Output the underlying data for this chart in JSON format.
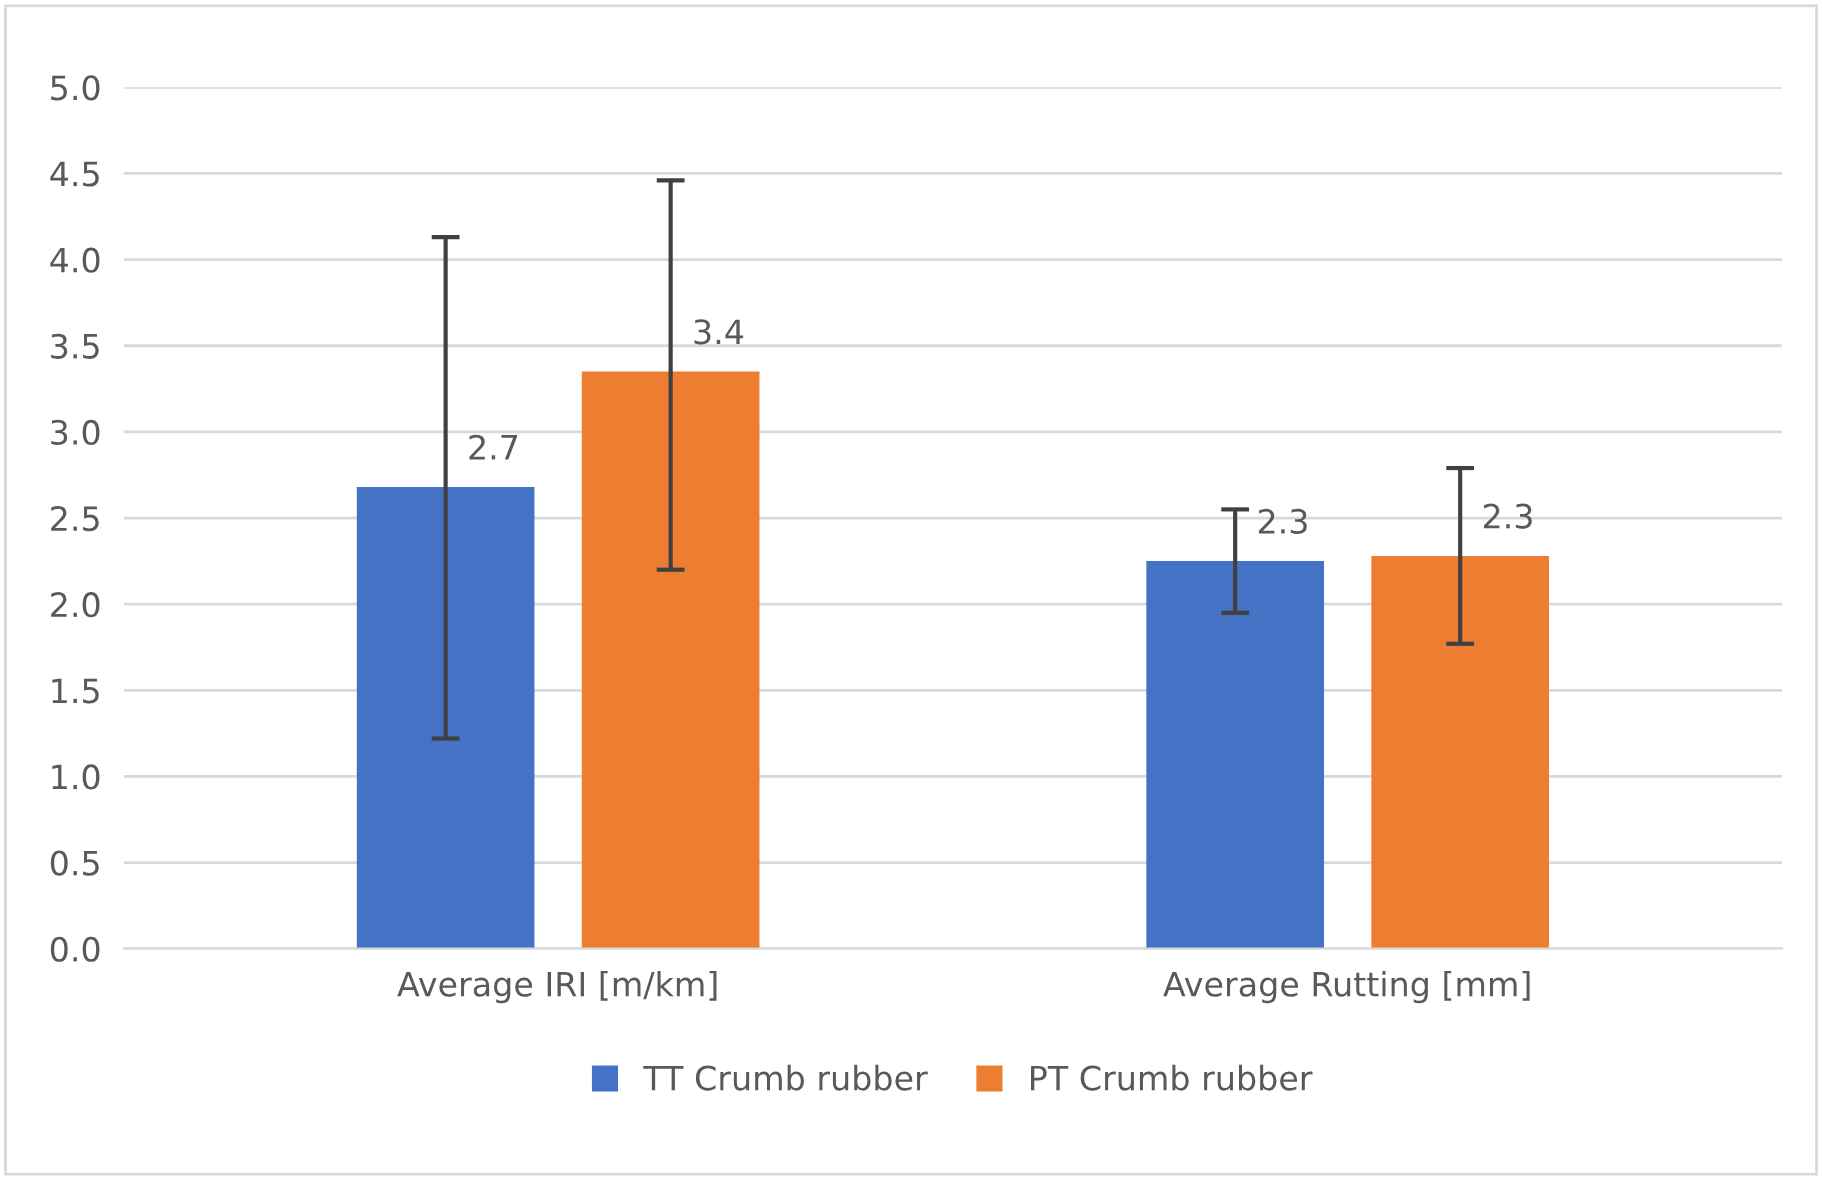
{
  "chart_data": {
    "type": "bar",
    "categories": [
      "Average IRI [m/km]",
      "Average Rutting [mm]"
    ],
    "series": [
      {
        "name": "TT Crumb rubber",
        "color": "#4472c4",
        "values": [
          2.68,
          2.25
        ],
        "errors": [
          [
            1.22,
            4.13
          ],
          [
            1.95,
            2.55
          ]
        ],
        "value_labels": [
          "2.7",
          "2.3"
        ]
      },
      {
        "name": "PT Crumb rubber",
        "color": "#ed7d31",
        "values": [
          3.35,
          2.28
        ],
        "errors": [
          [
            2.2,
            4.46
          ],
          [
            1.77,
            2.79
          ]
        ],
        "value_labels": [
          "3.4",
          "2.3"
        ]
      }
    ],
    "ylim": [
      0,
      5
    ],
    "yticks": [
      {
        "value": 0,
        "label": "0.0"
      },
      {
        "value": 0.5,
        "label": "0.5"
      },
      {
        "value": 1,
        "label": "1.0"
      },
      {
        "value": 1.5,
        "label": "1.5"
      },
      {
        "value": 2,
        "label": "2.0"
      },
      {
        "value": 2.5,
        "label": "2.5"
      },
      {
        "value": 3,
        "label": "3.0"
      },
      {
        "value": 3.5,
        "label": "3.5"
      },
      {
        "value": 4,
        "label": "4.0"
      },
      {
        "value": 4.5,
        "label": "4.5"
      },
      {
        "value": 5,
        "label": "5.0"
      }
    ],
    "grid": "y",
    "legend": "bottom"
  }
}
